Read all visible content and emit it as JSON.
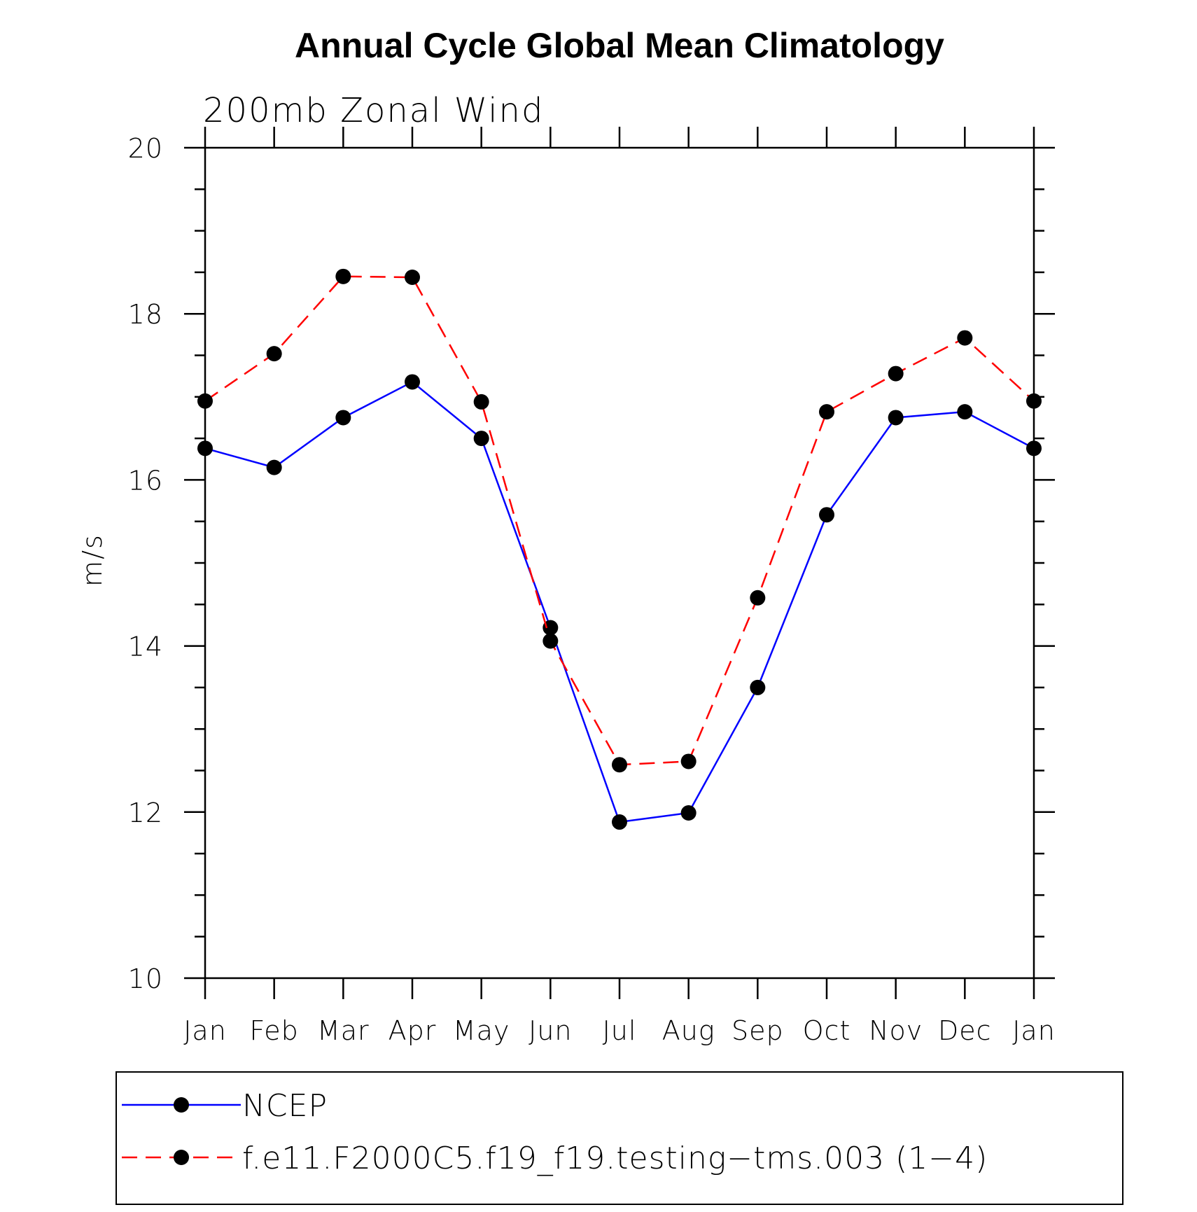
{
  "chart_data": {
    "type": "line",
    "title": "Annual Cycle Global Mean Climatology",
    "subtitle": "200mb Zonal Wind",
    "xlabel": "",
    "ylabel": "m/s",
    "ylim": [
      10,
      20
    ],
    "yticks": [
      "10",
      "12",
      "14",
      "16",
      "18",
      "20"
    ],
    "categories": [
      "Jan",
      "Feb",
      "Mar",
      "Apr",
      "May",
      "Jun",
      "Jul",
      "Aug",
      "Sep",
      "Oct",
      "Nov",
      "Dec",
      "Jan"
    ],
    "grid": false,
    "legend_position": "bottom",
    "series": [
      {
        "name": "NCEP",
        "color": "#0000ff",
        "line_style": "solid",
        "marker": "filled-circle",
        "values": [
          16.38,
          16.15,
          16.75,
          17.18,
          16.5,
          14.22,
          11.88,
          11.99,
          13.5,
          15.58,
          16.75,
          16.82,
          16.38
        ]
      },
      {
        "name": "f.e11.F2000C5.f19_f19.testing−tms.003 (1−4)",
        "color": "#ff0000",
        "line_style": "dashed",
        "marker": "filled-circle",
        "values": [
          16.95,
          17.52,
          18.45,
          18.44,
          16.94,
          14.06,
          12.57,
          12.61,
          14.58,
          16.82,
          17.28,
          17.71,
          16.95
        ]
      }
    ]
  }
}
